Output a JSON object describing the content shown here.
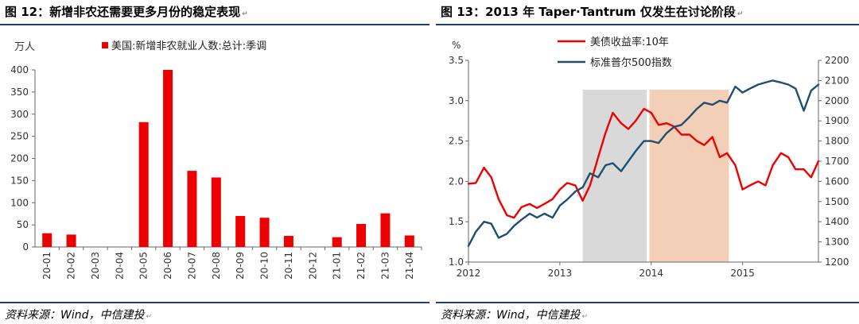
{
  "left_figure": {
    "title": "图 12：新增非农还需要更多月份的稳定表现",
    "source": "资料来源：Wind，中信建投"
  },
  "right_figure": {
    "title": "图 13：2013 年 Taper·Tantrum 仅发生在讨论阶段",
    "source": "资料来源：Wind，中信建投"
  },
  "colors": {
    "red": "#ee0000",
    "navy": "#1f4e6e",
    "gray_band": "#d9d9d9",
    "peach_band": "#f2cfb6",
    "rule": "#1f3f73"
  },
  "chart_data": [
    {
      "type": "bar",
      "unit_label": "万人",
      "legend": [
        "美国:新增非农就业人数:总计:季调"
      ],
      "categories": [
        "20-01",
        "20-02",
        "20-03",
        "20-04",
        "20-05",
        "20-06",
        "20-07",
        "20-08",
        "20-09",
        "20-10",
        "20-11",
        "20-12",
        "21-01",
        "21-02",
        "21-03",
        "21-04"
      ],
      "series": [
        {
          "name": "美国:新增非农就业人数:总计:季调",
          "values": [
            31,
            28,
            0,
            0,
            282,
            400,
            172,
            157,
            70,
            66,
            25,
            0,
            22,
            52,
            76,
            26
          ]
        }
      ],
      "ylim": [
        0,
        400
      ],
      "yticks": [
        0,
        50,
        100,
        150,
        200,
        250,
        300,
        350,
        400
      ],
      "grid": false,
      "legend_position": "top"
    },
    {
      "type": "line",
      "left_axis_label": "%",
      "x_ticks": [
        "2012",
        "2013",
        "2014",
        "2015"
      ],
      "xlim": [
        2012.0,
        2015.83
      ],
      "y_left_lim": [
        1.0,
        3.5
      ],
      "y_left_ticks": [
        "1.0",
        "1.5",
        "2.0",
        "2.5",
        "3.0",
        "3.5"
      ],
      "y_right_lim": [
        1200,
        2200
      ],
      "y_right_ticks": [
        1200,
        1300,
        1400,
        1500,
        1600,
        1700,
        1800,
        1900,
        2000,
        2100,
        2200
      ],
      "legend_position": "top-left",
      "shaded_periods": [
        {
          "start": 2013.25,
          "end": 2013.95,
          "color": "gray"
        },
        {
          "start": 2013.98,
          "end": 2014.85,
          "color": "peach"
        }
      ],
      "series": [
        {
          "name": "美债收益率:10年",
          "axis": "left",
          "x": [
            2012.0,
            2012.08,
            2012.17,
            2012.25,
            2012.33,
            2012.42,
            2012.5,
            2012.58,
            2012.67,
            2012.75,
            2012.83,
            2012.92,
            2013.0,
            2013.08,
            2013.17,
            2013.25,
            2013.33,
            2013.42,
            2013.5,
            2013.58,
            2013.67,
            2013.75,
            2013.83,
            2013.92,
            2014.0,
            2014.08,
            2014.17,
            2014.25,
            2014.33,
            2014.42,
            2014.5,
            2014.58,
            2014.67,
            2014.75,
            2014.83,
            2014.92,
            2015.0,
            2015.08,
            2015.17,
            2015.25,
            2015.33,
            2015.42,
            2015.5,
            2015.58,
            2015.67,
            2015.75,
            2015.83
          ],
          "y": [
            1.97,
            1.98,
            2.17,
            2.05,
            1.78,
            1.58,
            1.55,
            1.68,
            1.72,
            1.67,
            1.72,
            1.78,
            1.9,
            1.98,
            1.95,
            1.76,
            1.95,
            2.3,
            2.6,
            2.85,
            2.72,
            2.65,
            2.75,
            2.9,
            2.85,
            2.7,
            2.72,
            2.68,
            2.58,
            2.58,
            2.5,
            2.45,
            2.55,
            2.3,
            2.35,
            2.2,
            1.9,
            1.95,
            2.0,
            1.95,
            2.2,
            2.35,
            2.3,
            2.15,
            2.15,
            2.05,
            2.25
          ]
        },
        {
          "name": "标准普尔500指数",
          "axis": "right",
          "x": [
            2012.0,
            2012.08,
            2012.17,
            2012.25,
            2012.33,
            2012.42,
            2012.5,
            2012.58,
            2012.67,
            2012.75,
            2012.83,
            2012.92,
            2013.0,
            2013.08,
            2013.17,
            2013.25,
            2013.33,
            2013.42,
            2013.5,
            2013.58,
            2013.67,
            2013.75,
            2013.83,
            2013.92,
            2014.0,
            2014.08,
            2014.17,
            2014.25,
            2014.33,
            2014.42,
            2014.5,
            2014.58,
            2014.67,
            2014.75,
            2014.83,
            2014.92,
            2015.0,
            2015.08,
            2015.17,
            2015.25,
            2015.33,
            2015.42,
            2015.5,
            2015.58,
            2015.67,
            2015.75,
            2015.83
          ],
          "y": [
            1280,
            1350,
            1400,
            1390,
            1320,
            1340,
            1380,
            1410,
            1440,
            1420,
            1440,
            1420,
            1480,
            1510,
            1550,
            1570,
            1640,
            1620,
            1680,
            1690,
            1650,
            1700,
            1750,
            1800,
            1800,
            1790,
            1840,
            1870,
            1880,
            1920,
            1960,
            1990,
            1980,
            2000,
            1990,
            2070,
            2040,
            2060,
            2080,
            2090,
            2100,
            2090,
            2080,
            2060,
            1950,
            2050,
            2080
          ]
        }
      ]
    }
  ]
}
